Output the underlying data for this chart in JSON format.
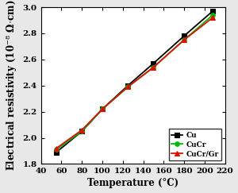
{
  "title": "",
  "xlabel": "Temperature (°C)",
  "xlim": [
    40,
    220
  ],
  "ylim": [
    1.8,
    3.0
  ],
  "xticks": [
    40,
    60,
    80,
    100,
    120,
    140,
    160,
    180,
    200,
    220
  ],
  "yticks": [
    1.8,
    2.0,
    2.2,
    2.4,
    2.6,
    2.8,
    3.0
  ],
  "series": [
    {
      "label": "Cu",
      "color": "#000000",
      "marker": "s",
      "markersize": 4,
      "x": [
        55,
        80,
        100,
        125,
        150,
        180,
        208
      ],
      "y": [
        1.89,
        2.05,
        2.22,
        2.4,
        2.57,
        2.78,
        2.97
      ]
    },
    {
      "label": "CuCr",
      "color": "#00bb00",
      "marker": "o",
      "markersize": 4,
      "x": [
        55,
        80,
        100,
        125,
        150,
        180,
        208
      ],
      "y": [
        1.91,
        2.05,
        2.22,
        2.39,
        2.54,
        2.75,
        2.94
      ]
    },
    {
      "label": "CuCr/Gr",
      "color": "#dd1100",
      "marker": "^",
      "markersize": 4,
      "x": [
        55,
        80,
        100,
        125,
        150,
        180,
        208
      ],
      "y": [
        1.92,
        2.06,
        2.22,
        2.39,
        2.54,
        2.75,
        2.92
      ]
    }
  ],
  "legend_loc": "lower right",
  "legend_fontsize": 6.5,
  "axis_label_fontsize": 8.5,
  "tick_fontsize": 7.5,
  "linewidth": 1.3,
  "background_color": "#ffffff",
  "figure_facecolor": "#e8e8e8"
}
